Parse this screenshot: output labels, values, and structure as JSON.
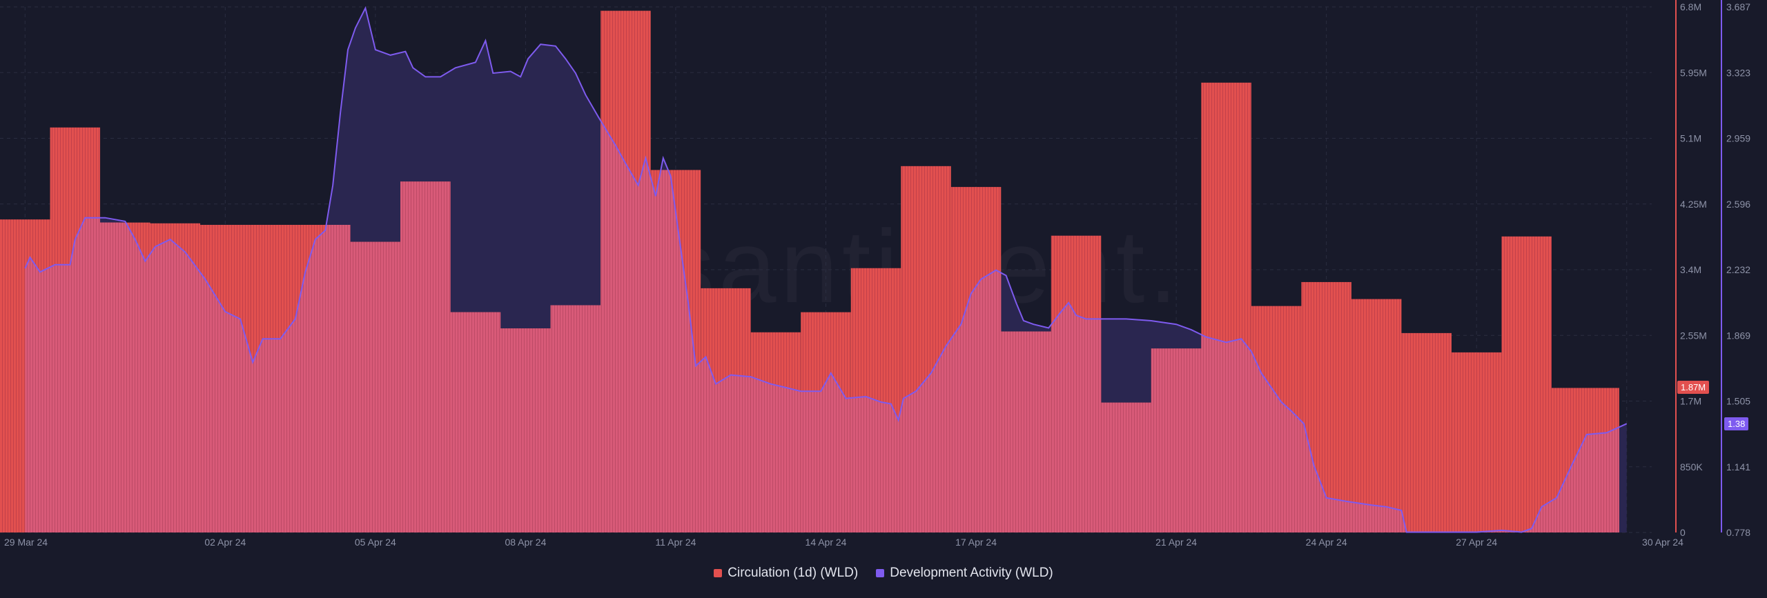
{
  "chart_data": {
    "type": "bar",
    "x_dates": [
      "29 Mar 24",
      "30 Mar 24",
      "31 Mar 24",
      "01 Apr 24",
      "02 Apr 24",
      "03 Apr 24",
      "04 Apr 24",
      "05 Apr 24",
      "06 Apr 24",
      "07 Apr 24",
      "08 Apr 24",
      "09 Apr 24",
      "10 Apr 24",
      "11 Apr 24",
      "12 Apr 24",
      "13 Apr 24",
      "14 Apr 24",
      "15 Apr 24",
      "16 Apr 24",
      "17 Apr 24",
      "18 Apr 24",
      "19 Apr 24",
      "20 Apr 24",
      "21 Apr 24",
      "22 Apr 24",
      "23 Apr 24",
      "24 Apr 24",
      "25 Apr 24",
      "26 Apr 24",
      "27 Apr 24",
      "28 Apr 24",
      "29 Apr 24",
      "30 Apr 24"
    ],
    "x_tick_labels": [
      "29 Mar 24",
      "02 Apr 24",
      "05 Apr 24",
      "08 Apr 24",
      "11 Apr 24",
      "14 Apr 24",
      "17 Apr 24",
      "21 Apr 24",
      "24 Apr 24",
      "27 Apr 24",
      "30 Apr 24"
    ],
    "series": [
      {
        "name": "Circulation (1d) (WLD)",
        "type": "bar",
        "color": "#e2504f",
        "axis": "left",
        "values": [
          4050000,
          5240000,
          4010000,
          4000000,
          3980000,
          3980000,
          3980000,
          3760000,
          4540000,
          2850000,
          2640000,
          2940000,
          6750000,
          4690000,
          3160000,
          2590000,
          2850000,
          3420000,
          4740000,
          4470000,
          2600000,
          3840000,
          1680000,
          2380000,
          5820000,
          2930000,
          3240000,
          3020000,
          2580000,
          2330000,
          3830000,
          1870000,
          1870000
        ]
      },
      {
        "name": "Development Activity (WLD)",
        "type": "line",
        "color": "#7e5bef",
        "axis": "right",
        "points": [
          [
            0,
            2.24
          ],
          [
            0.1,
            2.3
          ],
          [
            0.3,
            2.22
          ],
          [
            0.6,
            2.26
          ],
          [
            0.9,
            2.26
          ],
          [
            1.0,
            2.4
          ],
          [
            1.2,
            2.52
          ],
          [
            1.6,
            2.52
          ],
          [
            2.0,
            2.5
          ],
          [
            2.2,
            2.4
          ],
          [
            2.4,
            2.28
          ],
          [
            2.6,
            2.36
          ],
          [
            2.9,
            2.4
          ],
          [
            3.2,
            2.33
          ],
          [
            3.6,
            2.18
          ],
          [
            4.0,
            2.0
          ],
          [
            4.3,
            1.96
          ],
          [
            4.55,
            1.72
          ],
          [
            4.75,
            1.85
          ],
          [
            5.1,
            1.85
          ],
          [
            5.4,
            1.96
          ],
          [
            5.6,
            2.22
          ],
          [
            5.8,
            2.4
          ],
          [
            6.0,
            2.45
          ],
          [
            6.15,
            2.7
          ],
          [
            6.3,
            3.1
          ],
          [
            6.45,
            3.45
          ],
          [
            6.6,
            3.57
          ],
          [
            6.8,
            3.68
          ],
          [
            7.0,
            3.45
          ],
          [
            7.3,
            3.42
          ],
          [
            7.6,
            3.44
          ],
          [
            7.75,
            3.35
          ],
          [
            8.0,
            3.3
          ],
          [
            8.3,
            3.3
          ],
          [
            8.6,
            3.35
          ],
          [
            9.0,
            3.38
          ],
          [
            9.2,
            3.5
          ],
          [
            9.35,
            3.32
          ],
          [
            9.7,
            3.33
          ],
          [
            9.9,
            3.3
          ],
          [
            10.05,
            3.4
          ],
          [
            10.3,
            3.48
          ],
          [
            10.6,
            3.47
          ],
          [
            10.8,
            3.4
          ],
          [
            11.0,
            3.32
          ],
          [
            11.2,
            3.2
          ],
          [
            11.45,
            3.08
          ],
          [
            11.8,
            2.92
          ],
          [
            12.0,
            2.82
          ],
          [
            12.25,
            2.7
          ],
          [
            12.4,
            2.85
          ],
          [
            12.6,
            2.64
          ],
          [
            12.75,
            2.85
          ],
          [
            12.9,
            2.75
          ],
          [
            13.05,
            2.45
          ],
          [
            13.25,
            2.05
          ],
          [
            13.4,
            1.7
          ],
          [
            13.6,
            1.75
          ],
          [
            13.8,
            1.6
          ],
          [
            14.1,
            1.65
          ],
          [
            14.5,
            1.64
          ],
          [
            14.9,
            1.6
          ],
          [
            15.2,
            1.58
          ],
          [
            15.5,
            1.56
          ],
          [
            15.9,
            1.56
          ],
          [
            16.1,
            1.66
          ],
          [
            16.4,
            1.52
          ],
          [
            16.8,
            1.53
          ],
          [
            17.1,
            1.5
          ],
          [
            17.3,
            1.49
          ],
          [
            17.45,
            1.4
          ],
          [
            17.55,
            1.52
          ],
          [
            17.8,
            1.56
          ],
          [
            18.1,
            1.66
          ],
          [
            18.4,
            1.81
          ],
          [
            18.7,
            1.93
          ],
          [
            18.9,
            2.1
          ],
          [
            19.1,
            2.18
          ],
          [
            19.4,
            2.23
          ],
          [
            19.6,
            2.2
          ],
          [
            19.8,
            2.05
          ],
          [
            19.95,
            1.95
          ],
          [
            20.15,
            1.93
          ],
          [
            20.45,
            1.91
          ],
          [
            20.7,
            2.0
          ],
          [
            20.85,
            2.05
          ],
          [
            21.0,
            1.98
          ],
          [
            21.2,
            1.96
          ],
          [
            21.6,
            1.96
          ],
          [
            22.0,
            1.96
          ],
          [
            22.5,
            1.95
          ],
          [
            23.0,
            1.93
          ],
          [
            23.3,
            1.9
          ],
          [
            23.6,
            1.86
          ],
          [
            24.0,
            1.83
          ],
          [
            24.3,
            1.85
          ],
          [
            24.5,
            1.78
          ],
          [
            24.7,
            1.66
          ],
          [
            24.9,
            1.58
          ],
          [
            25.1,
            1.5
          ],
          [
            25.3,
            1.45
          ],
          [
            25.55,
            1.38
          ],
          [
            25.75,
            1.15
          ],
          [
            26.0,
            0.97
          ],
          [
            26.4,
            0.95
          ],
          [
            26.9,
            0.93
          ],
          [
            27.2,
            0.92
          ],
          [
            27.5,
            0.9
          ],
          [
            27.6,
            0.78
          ],
          [
            28.0,
            0.78
          ],
          [
            28.5,
            0.78
          ],
          [
            29.0,
            0.78
          ],
          [
            29.5,
            0.79
          ],
          [
            29.9,
            0.78
          ],
          [
            30.1,
            0.8
          ],
          [
            30.3,
            0.92
          ],
          [
            30.6,
            0.97
          ],
          [
            30.9,
            1.15
          ],
          [
            31.2,
            1.32
          ],
          [
            31.6,
            1.33
          ],
          [
            32.0,
            1.38
          ]
        ]
      }
    ],
    "y_left": {
      "ticks": [
        "0",
        "850K",
        "1.7M",
        "2.55M",
        "3.4M",
        "4.25M",
        "5.1M",
        "5.95M",
        "6.8M"
      ],
      "min": 0,
      "max": 6800000
    },
    "y_right": {
      "ticks": [
        "0.778",
        "1.141",
        "1.505",
        "1.869",
        "2.232",
        "2.596",
        "2.959",
        "3.323",
        "3.687"
      ],
      "min": 0.778,
      "max": 3.687
    },
    "current_values": {
      "left": "1.87M",
      "right": "1.38"
    },
    "watermark": "santiment.",
    "grid": true,
    "legend_position": "bottom-center"
  },
  "legend": [
    {
      "label": "Circulation (1d) (WLD)",
      "color": "#e2504f"
    },
    {
      "label": "Development Activity (WLD)",
      "color": "#7e5bef"
    }
  ]
}
